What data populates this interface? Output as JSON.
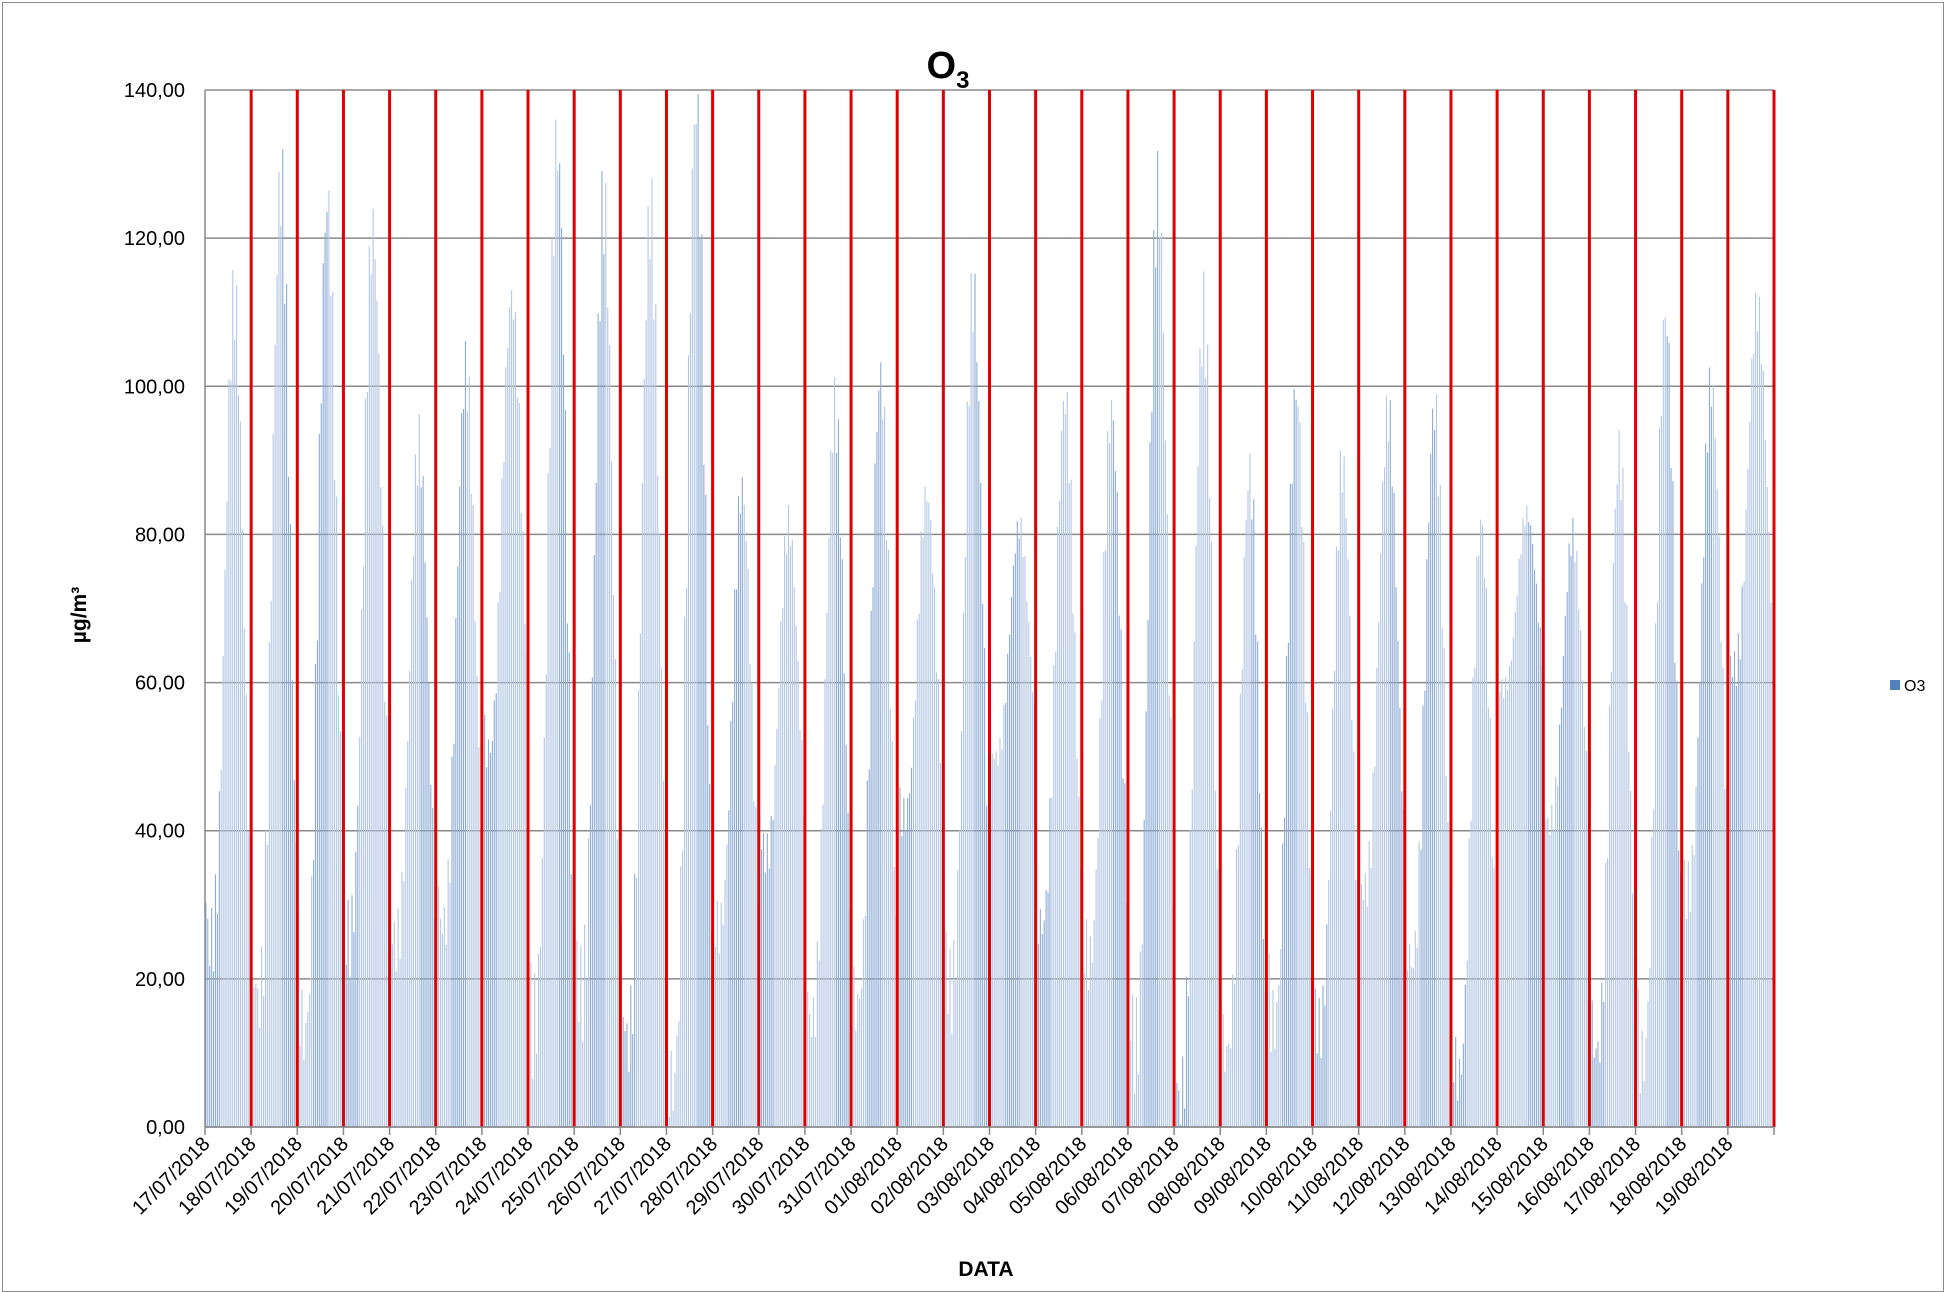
{
  "chart_data": {
    "type": "bar",
    "title": "O",
    "title_subscript": "3",
    "xlabel": "DATA",
    "ylabel": "µg/m³",
    "ylim": [
      0,
      140
    ],
    "yticks": [
      "0,00",
      "20,00",
      "40,00",
      "60,00",
      "80,00",
      "100,00",
      "120,00",
      "140,00"
    ],
    "categories": [
      "17/07/2018",
      "18/07/2018",
      "19/07/2018",
      "20/07/2018",
      "21/07/2018",
      "22/07/2018",
      "23/07/2018",
      "24/07/2018",
      "25/07/2018",
      "26/07/2018",
      "27/07/2018",
      "28/07/2018",
      "29/07/2018",
      "30/07/2018",
      "31/07/2018",
      "01/08/2018",
      "02/08/2018",
      "03/08/2018",
      "04/08/2018",
      "05/08/2018",
      "06/08/2018",
      "07/08/2018",
      "08/08/2018",
      "09/08/2018",
      "10/08/2018",
      "11/08/2018",
      "12/08/2018",
      "13/08/2018",
      "14/08/2018",
      "15/08/2018",
      "16/08/2018",
      "17/08/2018",
      "18/08/2018",
      "19/08/2018"
    ],
    "grid": true,
    "legend": "right",
    "series": [
      {
        "name": "O3",
        "color": "#4f81bd",
        "daily_peaks": [
          112,
          132,
          123,
          118,
          94,
          104,
          110,
          131,
          129,
          123,
          133,
          87,
          83,
          95,
          99,
          87,
          114,
          80,
          98,
          100,
          125,
          106,
          90,
          102,
          87,
          95,
          100,
          82,
          82,
          80,
          94,
          108,
          98,
          112
        ],
        "daily_minima": [
          23,
          14,
          16,
          27,
          22,
          27,
          53,
          13,
          14,
          14,
          9,
          25,
          36,
          17,
          17,
          40,
          19,
          51,
          26,
          20,
          14,
          6,
          7,
          13,
          16,
          32,
          19,
          8,
          60,
          40,
          8,
          12,
          33,
          60
        ]
      }
    ]
  }
}
